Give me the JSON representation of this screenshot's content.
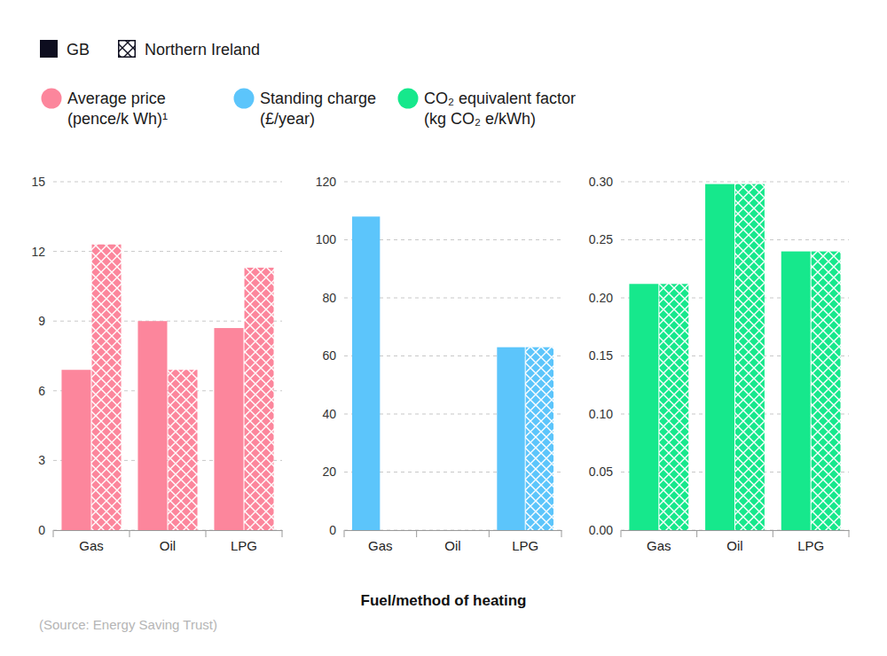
{
  "chart_data": [
    {
      "type": "bar",
      "title": "Average price (pence/k Wh)¹",
      "color": "#fc869c",
      "categories": [
        "Gas",
        "Oil",
        "LPG"
      ],
      "series": [
        {
          "name": "GB",
          "values": [
            6.9,
            9.0,
            8.7
          ]
        },
        {
          "name": "Northern Ireland",
          "values": [
            12.3,
            6.9,
            11.3
          ]
        }
      ],
      "ylim": [
        0,
        15
      ],
      "yticks": [
        0,
        3,
        6,
        9,
        12,
        15
      ],
      "grid": true,
      "legend": "top-left",
      "source": "(Source: Energy Saving Trust)"
    },
    {
      "type": "bar",
      "title": "Standing charge (£/year)",
      "color": "#5cc5fb",
      "categories": [
        "Gas",
        "Oil",
        "LPG"
      ],
      "series": [
        {
          "values": [
            108,
            null,
            63
          ]
        },
        {
          "values": [
            null,
            null,
            63
          ]
        }
      ],
      "ylim": [
        0,
        120
      ],
      "yticks": [
        0,
        20,
        40,
        60,
        80,
        100,
        120
      ],
      "grid": true,
      "xlabel": "Fuel/method of heating"
    },
    {
      "type": "bar",
      "title": "CO₂ equivalent factor (kg CO₂ e/kWh)",
      "color": "#16e88c",
      "categories": [
        "Gas",
        "Oil",
        "LPG"
      ],
      "series": [
        {
          "values": [
            0.212,
            0.298,
            0.24
          ]
        },
        {
          "values": [
            0.212,
            0.298,
            0.24
          ]
        }
      ],
      "ylim": [
        0,
        0.3
      ],
      "yticks": [
        {
          "value": 0,
          "label": "0.00"
        },
        {
          "value": 0.05,
          "label": "0.05"
        },
        {
          "value": 0.1,
          "label": "0.10"
        },
        {
          "value": 0.15,
          "label": "0.15"
        },
        {
          "value": 0.2,
          "label": "0.20"
        },
        {
          "value": 0.25,
          "label": "0.25"
        },
        {
          "value": 0.3,
          "label": "0.30"
        }
      ],
      "grid": true
    }
  ]
}
